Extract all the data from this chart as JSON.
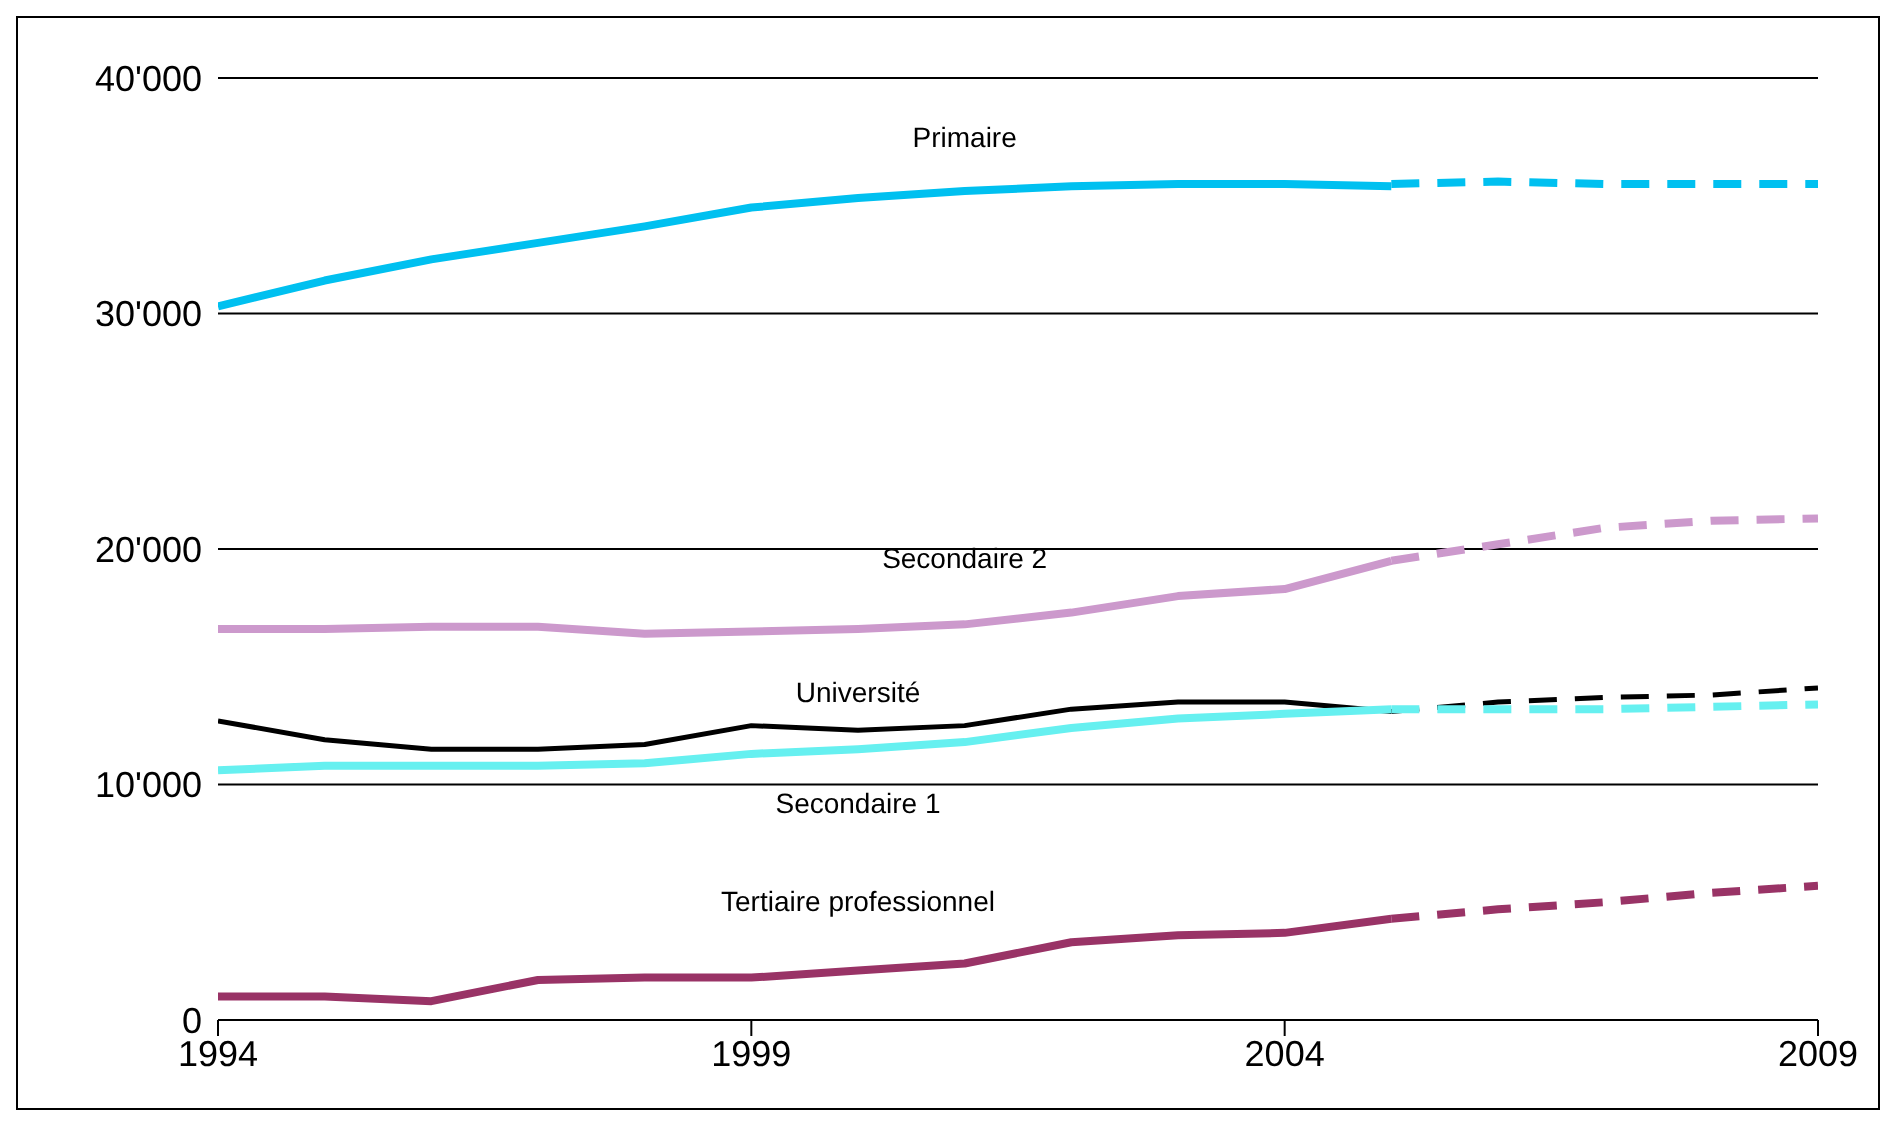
{
  "chart_data": {
    "type": "line",
    "xlim": [
      1994,
      2009
    ],
    "xticks": [
      1994,
      1999,
      2004,
      2009
    ],
    "ylim": [
      0,
      40000
    ],
    "yticks": [
      0,
      {
        "value": 10000,
        "label": "10'000"
      },
      {
        "value": 20000,
        "label": "20'000"
      },
      {
        "value": 30000,
        "label": "30'000"
      },
      {
        "value": 40000,
        "label": "40'000"
      }
    ],
    "grid": "y",
    "marker": "none",
    "series": [
      {
        "name": "Primaire",
        "color": "#00c0f0",
        "line_style": "solid",
        "x": [
          1994,
          1995,
          1996,
          1997,
          1998,
          1999,
          2000,
          2001,
          2002,
          2003,
          2004,
          2005
        ],
        "values": [
          30300,
          31400,
          32300,
          33000,
          33700,
          34500,
          34900,
          35200,
          35400,
          35500,
          35500,
          35400
        ]
      },
      {
        "name": "Secondaire 2",
        "color": "#cc99cc",
        "line_style": "solid",
        "x": [
          1994,
          1995,
          1996,
          1997,
          1998,
          1999,
          2000,
          2001,
          2002,
          2003,
          2004,
          2005
        ],
        "values": [
          16600,
          16600,
          16700,
          16700,
          16400,
          16500,
          16600,
          16800,
          17300,
          18000,
          18300,
          19500
        ]
      },
      {
        "name": "Université",
        "color": "#000000",
        "line_style": "solid",
        "x": [
          1994,
          1995,
          1996,
          1997,
          1998,
          1999,
          2000,
          2001,
          2002,
          2003,
          2004,
          2005
        ],
        "values": [
          12700,
          11900,
          11500,
          11500,
          11700,
          12500,
          12300,
          12500,
          13200,
          13500,
          13500,
          13100
        ]
      },
      {
        "name": "Secondaire 1",
        "color": "#66f0f0",
        "line_style": "solid",
        "x": [
          1994,
          1995,
          1996,
          1997,
          1998,
          1999,
          2000,
          2001,
          2002,
          2003,
          2004,
          2005
        ],
        "values": [
          10600,
          10800,
          10800,
          10800,
          10900,
          11300,
          11500,
          11800,
          12400,
          12800,
          13000,
          13200
        ]
      },
      {
        "name": "Tertiaire professionnel",
        "color": "#993366",
        "line_style": "solid",
        "x": [
          1994,
          1995,
          1996,
          1997,
          1998,
          1999,
          2000,
          2001,
          2002,
          2003,
          2004,
          2005
        ],
        "values": [
          1000,
          1000,
          800,
          1700,
          1800,
          1800,
          2100,
          2400,
          3300,
          3600,
          3700,
          4300
        ]
      },
      {
        "color": "#00c0f0",
        "line_style": "dashed",
        "x": [
          2005,
          2006,
          2007,
          2008,
          2009
        ],
        "values": [
          35500,
          35600,
          35500,
          35500,
          35500
        ]
      },
      {
        "color": "#cc99cc",
        "line_style": "dashed",
        "x": [
          2005,
          2006,
          2007,
          2008,
          2009
        ],
        "values": [
          19500,
          20200,
          20900,
          21200,
          21300
        ]
      },
      {
        "color": "#000000",
        "line_style": "dashed",
        "x": [
          2005,
          2006,
          2007,
          2008,
          2009
        ],
        "values": [
          13100,
          13500,
          13700,
          13800,
          14100
        ]
      },
      {
        "color": "#66f0f0",
        "line_style": "dashed",
        "x": [
          2005,
          2006,
          2007,
          2008,
          2009
        ],
        "values": [
          13200,
          13200,
          13200,
          13300,
          13400
        ]
      },
      {
        "color": "#993366",
        "line_style": "dashed",
        "x": [
          2005,
          2006,
          2007,
          2008,
          2009
        ],
        "values": [
          4300,
          4700,
          5000,
          5400,
          5700
        ]
      }
    ]
  }
}
